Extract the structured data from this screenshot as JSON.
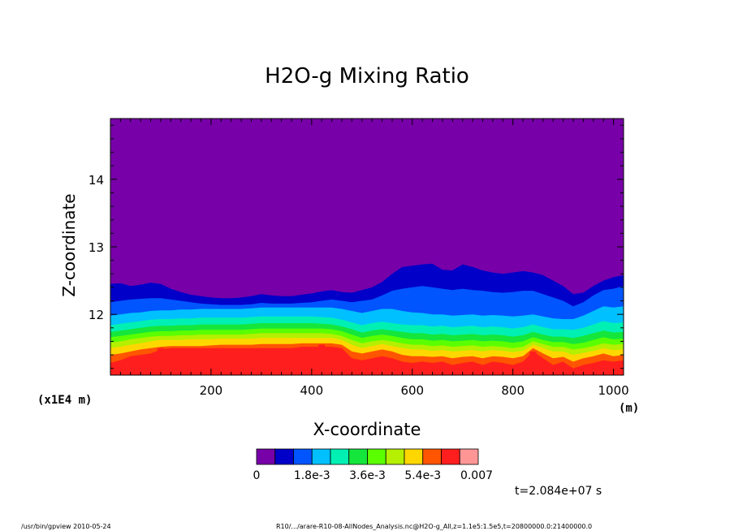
{
  "chart_data": {
    "type": "heatmap",
    "title": "H2O-g Mixing Ratio",
    "xlabel": "X-coordinate",
    "xunit": "(m)",
    "ylabel": "Z-coordinate",
    "yunit": "(x1E4 m)",
    "x_range": [
      0,
      1020
    ],
    "y_range": [
      11.1,
      14.9
    ],
    "x_ticks": [
      200,
      400,
      600,
      800,
      1000
    ],
    "x_tick_labels": [
      "200",
      "400",
      "600",
      "800",
      "1000"
    ],
    "y_ticks": [
      12,
      13,
      14
    ],
    "y_tick_labels": [
      "12",
      "13",
      "14"
    ],
    "colorbar": {
      "levels": [
        0,
        0.0006,
        0.0012,
        0.0018,
        0.0024,
        0.003,
        0.0036,
        0.0042,
        0.0048,
        0.0054,
        0.006,
        0.0066,
        0.007
      ],
      "labels": [
        "0",
        "1.8e-3",
        "3.6e-3",
        "5.4e-3",
        "0.007"
      ],
      "colors": [
        "#7700a8",
        "#0000c8",
        "#0055ff",
        "#00c0ff",
        "#00f0b4",
        "#14e63c",
        "#5aff00",
        "#b4f000",
        "#ffd700",
        "#ff5500",
        "#ff1e1e",
        "#ff9696"
      ]
    },
    "boundaries": {
      "x": [
        0,
        20,
        40,
        60,
        80,
        100,
        120,
        140,
        160,
        180,
        200,
        220,
        240,
        260,
        280,
        300,
        320,
        340,
        360,
        380,
        400,
        420,
        440,
        460,
        480,
        500,
        520,
        540,
        560,
        580,
        600,
        620,
        640,
        660,
        680,
        700,
        720,
        740,
        760,
        780,
        800,
        820,
        840,
        860,
        880,
        900,
        920,
        940,
        960,
        980,
        1000,
        1020
      ],
      "y": [
        [
          11.19,
          11.19,
          11.19,
          11.19,
          11.19,
          11.19,
          11.19,
          11.19,
          11.19,
          11.19,
          11.19,
          11.19,
          11.19,
          11.19,
          11.19,
          11.19,
          11.19,
          11.19,
          11.19,
          11.19,
          11.19,
          11.19,
          11.19,
          11.19,
          11.19,
          11.19,
          11.19,
          11.19,
          11.19,
          11.19,
          11.19,
          11.19,
          11.19,
          11.19,
          11.19,
          11.19,
          11.19,
          11.19,
          11.19,
          11.19,
          11.19,
          11.19,
          11.19,
          11.19,
          11.19,
          11.19,
          11.19,
          11.19,
          11.19,
          11.19,
          11.19,
          11.19
        ],
        [
          11.28,
          11.32,
          11.38,
          11.4,
          11.42,
          11.48,
          11.5,
          11.5,
          11.5,
          11.5,
          11.5,
          11.5,
          11.5,
          11.5,
          11.5,
          11.5,
          11.5,
          11.5,
          11.5,
          11.52,
          11.52,
          11.52,
          11.52,
          11.5,
          11.35,
          11.32,
          11.35,
          11.38,
          11.35,
          11.3,
          11.28,
          11.3,
          11.28,
          11.3,
          11.25,
          11.28,
          11.3,
          11.25,
          11.3,
          11.28,
          11.25,
          11.3,
          11.45,
          11.35,
          11.25,
          11.3,
          11.2,
          11.25,
          11.28,
          11.32,
          11.3,
          11.32
        ],
        [
          11.4,
          11.42,
          11.45,
          11.48,
          11.5,
          11.52,
          11.53,
          11.53,
          11.53,
          11.53,
          11.54,
          11.55,
          11.55,
          11.55,
          11.55,
          11.56,
          11.56,
          11.56,
          11.56,
          11.57,
          11.57,
          11.57,
          11.57,
          11.55,
          11.45,
          11.42,
          11.45,
          11.48,
          11.45,
          11.4,
          11.38,
          11.38,
          11.37,
          11.38,
          11.35,
          11.37,
          11.38,
          11.35,
          11.38,
          11.37,
          11.35,
          11.38,
          11.5,
          11.42,
          11.35,
          11.37,
          11.3,
          11.35,
          11.38,
          11.42,
          11.38,
          11.4
        ],
        [
          11.5,
          11.52,
          11.55,
          11.57,
          11.6,
          11.62,
          11.62,
          11.62,
          11.63,
          11.63,
          11.63,
          11.64,
          11.64,
          11.64,
          11.64,
          11.65,
          11.65,
          11.65,
          11.65,
          11.65,
          11.65,
          11.65,
          11.65,
          11.62,
          11.55,
          11.5,
          11.53,
          11.56,
          11.53,
          11.5,
          11.48,
          11.48,
          11.46,
          11.47,
          11.45,
          11.46,
          11.47,
          11.45,
          11.47,
          11.46,
          11.44,
          11.46,
          11.55,
          11.5,
          11.45,
          11.45,
          11.4,
          11.43,
          11.46,
          11.5,
          11.47,
          11.48
        ],
        [
          11.58,
          11.6,
          11.63,
          11.65,
          11.67,
          11.68,
          11.68,
          11.69,
          11.69,
          11.7,
          11.7,
          11.7,
          11.7,
          11.7,
          11.71,
          11.72,
          11.72,
          11.72,
          11.72,
          11.72,
          11.72,
          11.72,
          11.71,
          11.68,
          11.62,
          11.57,
          11.6,
          11.62,
          11.6,
          11.57,
          11.55,
          11.55,
          11.53,
          11.54,
          11.52,
          11.53,
          11.54,
          11.52,
          11.53,
          11.52,
          11.5,
          11.52,
          11.6,
          11.56,
          11.52,
          11.52,
          11.48,
          11.5,
          11.53,
          11.57,
          11.55,
          11.56
        ],
        [
          11.66,
          11.68,
          11.7,
          11.72,
          11.74,
          11.75,
          11.75,
          11.76,
          11.76,
          11.77,
          11.77,
          11.77,
          11.77,
          11.77,
          11.78,
          11.79,
          11.79,
          11.79,
          11.79,
          11.79,
          11.79,
          11.79,
          11.78,
          11.75,
          11.7,
          11.65,
          11.68,
          11.7,
          11.68,
          11.65,
          11.63,
          11.63,
          11.61,
          11.62,
          11.6,
          11.61,
          11.62,
          11.6,
          11.61,
          11.6,
          11.58,
          11.6,
          11.66,
          11.62,
          11.59,
          11.59,
          11.56,
          11.58,
          11.62,
          11.66,
          11.63,
          11.64
        ],
        [
          11.74,
          11.76,
          11.78,
          11.8,
          11.82,
          11.83,
          11.83,
          11.84,
          11.84,
          11.85,
          11.85,
          11.85,
          11.85,
          11.85,
          11.86,
          11.87,
          11.87,
          11.87,
          11.87,
          11.87,
          11.87,
          11.86,
          11.85,
          11.82,
          11.78,
          11.73,
          11.76,
          11.78,
          11.76,
          11.74,
          11.72,
          11.72,
          11.7,
          11.71,
          11.69,
          11.7,
          11.71,
          11.69,
          11.7,
          11.69,
          11.67,
          11.69,
          11.74,
          11.7,
          11.67,
          11.67,
          11.65,
          11.68,
          11.72,
          11.76,
          11.73,
          11.74
        ],
        [
          11.84,
          11.86,
          11.88,
          11.9,
          11.92,
          11.93,
          11.93,
          11.94,
          11.94,
          11.95,
          11.95,
          11.95,
          11.95,
          11.95,
          11.96,
          11.97,
          11.97,
          11.97,
          11.97,
          11.97,
          11.97,
          11.96,
          11.95,
          11.92,
          11.88,
          11.84,
          11.87,
          11.89,
          11.87,
          11.85,
          11.84,
          11.84,
          11.82,
          11.83,
          11.81,
          11.82,
          11.83,
          11.81,
          11.82,
          11.81,
          11.79,
          11.81,
          11.85,
          11.81,
          11.78,
          11.78,
          11.77,
          11.8,
          11.85,
          11.9,
          11.87,
          11.88
        ],
        [
          11.98,
          12.0,
          12.02,
          12.03,
          12.05,
          12.06,
          12.06,
          12.07,
          12.07,
          12.08,
          12.08,
          12.08,
          12.08,
          12.08,
          12.09,
          12.1,
          12.1,
          12.1,
          12.1,
          12.1,
          12.1,
          12.1,
          12.1,
          12.08,
          12.05,
          12.02,
          12.05,
          12.08,
          12.08,
          12.05,
          12.03,
          12.02,
          12.0,
          12.0,
          11.98,
          11.99,
          12.0,
          11.98,
          11.99,
          11.98,
          11.97,
          11.98,
          12.0,
          11.97,
          11.94,
          11.93,
          11.93,
          11.98,
          12.05,
          12.12,
          12.1,
          12.12
        ],
        [
          12.18,
          12.2,
          12.22,
          12.23,
          12.24,
          12.24,
          12.22,
          12.2,
          12.18,
          12.16,
          12.15,
          12.14,
          12.14,
          12.14,
          12.15,
          12.17,
          12.16,
          12.16,
          12.16,
          12.17,
          12.18,
          12.2,
          12.22,
          12.2,
          12.18,
          12.2,
          12.22,
          12.28,
          12.35,
          12.38,
          12.4,
          12.42,
          12.4,
          12.38,
          12.36,
          12.38,
          12.36,
          12.35,
          12.33,
          12.32,
          12.33,
          12.35,
          12.35,
          12.3,
          12.25,
          12.2,
          12.12,
          12.18,
          12.28,
          12.36,
          12.38,
          12.42
        ],
        [
          12.45,
          12.46,
          12.42,
          12.44,
          12.47,
          12.45,
          12.38,
          12.33,
          12.29,
          12.27,
          12.25,
          12.24,
          12.24,
          12.25,
          12.27,
          12.3,
          12.28,
          12.27,
          12.27,
          12.29,
          12.31,
          12.34,
          12.36,
          12.33,
          12.32,
          12.36,
          12.4,
          12.48,
          12.6,
          12.7,
          12.72,
          12.74,
          12.75,
          12.66,
          12.65,
          12.74,
          12.7,
          12.65,
          12.62,
          12.6,
          12.62,
          12.64,
          12.62,
          12.58,
          12.5,
          12.42,
          12.3,
          12.32,
          12.42,
          12.5,
          12.55,
          12.58
        ]
      ]
    },
    "hotspots_top_level": [
      {
        "x": 100,
        "y": 11.5
      },
      {
        "x": 420,
        "y": 11.55
      },
      {
        "x": 840,
        "y": 11.45
      }
    ]
  },
  "time_label": "t=2.084e+07 s",
  "footer": {
    "left": "/usr/bin/gpview   2010-05-24",
    "right": "R10/.../arare-R10-08-AllNodes_Analysis.nc@H2O-g_All,z=1.1e5:1.5e5,t=20800000.0:21400000.0"
  }
}
